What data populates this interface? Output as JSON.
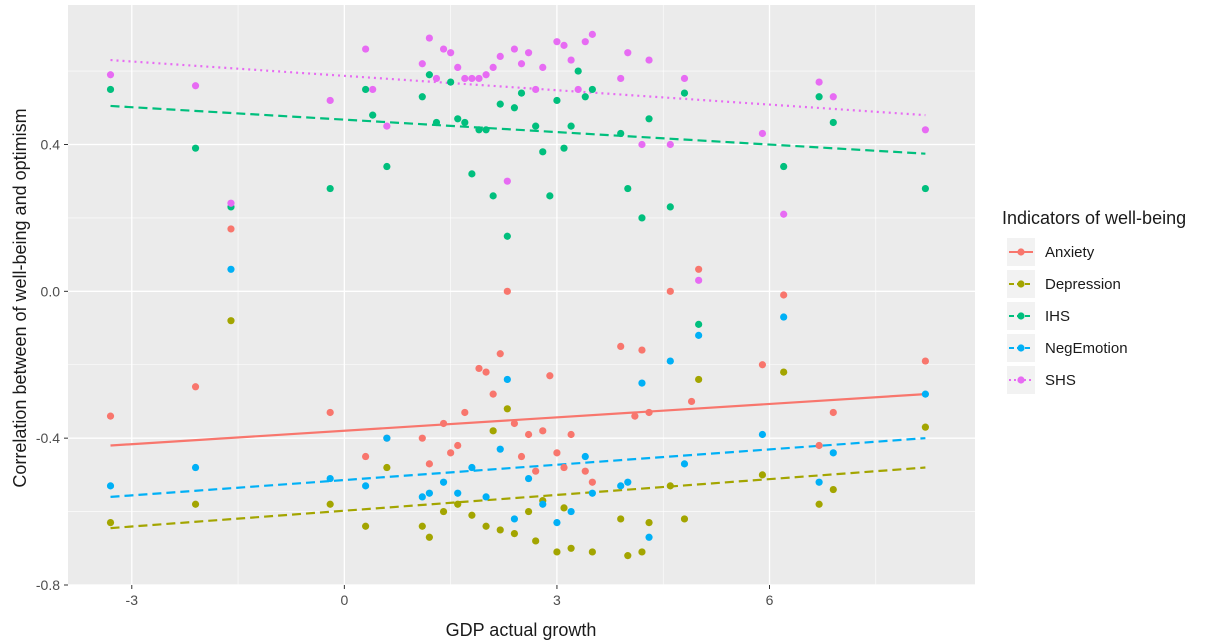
{
  "chart_data": {
    "type": "scatter",
    "xlabel": "GDP actual growth",
    "ylabel": "Correlation between of well-being and optimism",
    "xlim": [
      -3.9,
      8.9
    ],
    "ylim": [
      -0.8,
      0.78
    ],
    "x_ticks": [
      -3,
      0,
      3,
      6
    ],
    "x_tick_labels": [
      "-3",
      "0",
      "3",
      "6"
    ],
    "y_ticks": [
      -0.8,
      -0.4,
      0.0,
      0.4
    ],
    "y_tick_labels": [
      "-0.8",
      "-0.4",
      "0.0",
      "0.4"
    ],
    "grid": true,
    "panel_background": "#ebebeb",
    "legend": {
      "title": "Indicators of well-being",
      "placement": "right",
      "entries": [
        "Anxiety",
        "Depression",
        "IHS",
        "NegEmotion",
        "SHS"
      ]
    },
    "series": [
      {
        "name": "Anxiety",
        "color": "#f8766d",
        "line_style": "solid",
        "trend": {
          "x": [
            -3.3,
            8.2
          ],
          "y": [
            -0.42,
            -0.28
          ]
        },
        "points": [
          [
            -3.3,
            -0.34
          ],
          [
            -2.1,
            -0.26
          ],
          [
            -1.6,
            0.17
          ],
          [
            -0.2,
            -0.33
          ],
          [
            0.3,
            -0.45
          ],
          [
            0.6,
            -0.4
          ],
          [
            1.1,
            -0.4
          ],
          [
            1.2,
            -0.47
          ],
          [
            1.4,
            -0.36
          ],
          [
            1.5,
            -0.44
          ],
          [
            1.6,
            -0.42
          ],
          [
            1.7,
            -0.33
          ],
          [
            1.9,
            -0.21
          ],
          [
            2.0,
            -0.22
          ],
          [
            2.1,
            -0.28
          ],
          [
            2.2,
            -0.17
          ],
          [
            2.3,
            0.0
          ],
          [
            2.4,
            -0.36
          ],
          [
            2.5,
            -0.45
          ],
          [
            2.6,
            -0.39
          ],
          [
            2.7,
            -0.49
          ],
          [
            2.8,
            -0.38
          ],
          [
            2.9,
            -0.23
          ],
          [
            3.0,
            -0.44
          ],
          [
            3.1,
            -0.48
          ],
          [
            3.2,
            -0.39
          ],
          [
            3.4,
            -0.49
          ],
          [
            3.5,
            -0.52
          ],
          [
            3.9,
            -0.15
          ],
          [
            4.1,
            -0.34
          ],
          [
            4.2,
            -0.16
          ],
          [
            4.3,
            -0.33
          ],
          [
            4.6,
            0.0
          ],
          [
            4.9,
            -0.3
          ],
          [
            5.0,
            0.06
          ],
          [
            5.9,
            -0.2
          ],
          [
            6.2,
            -0.01
          ],
          [
            6.7,
            -0.42
          ],
          [
            6.9,
            -0.33
          ],
          [
            8.2,
            -0.19
          ]
        ]
      },
      {
        "name": "Depression",
        "color": "#a3a500",
        "line_style": "dashed",
        "trend": {
          "x": [
            -3.3,
            8.2
          ],
          "y": [
            -0.645,
            -0.48
          ]
        },
        "points": [
          [
            -3.3,
            -0.63
          ],
          [
            -2.1,
            -0.58
          ],
          [
            -1.6,
            -0.08
          ],
          [
            -0.2,
            -0.58
          ],
          [
            0.3,
            -0.64
          ],
          [
            0.6,
            -0.48
          ],
          [
            1.1,
            -0.64
          ],
          [
            1.2,
            -0.67
          ],
          [
            1.4,
            -0.6
          ],
          [
            1.6,
            -0.58
          ],
          [
            1.8,
            -0.61
          ],
          [
            2.0,
            -0.64
          ],
          [
            2.1,
            -0.38
          ],
          [
            2.2,
            -0.65
          ],
          [
            2.3,
            -0.32
          ],
          [
            2.4,
            -0.66
          ],
          [
            2.6,
            -0.6
          ],
          [
            2.7,
            -0.68
          ],
          [
            2.8,
            -0.57
          ],
          [
            3.0,
            -0.71
          ],
          [
            3.1,
            -0.59
          ],
          [
            3.2,
            -0.7
          ],
          [
            3.5,
            -0.71
          ],
          [
            3.9,
            -0.62
          ],
          [
            4.0,
            -0.72
          ],
          [
            4.2,
            -0.71
          ],
          [
            4.3,
            -0.63
          ],
          [
            4.6,
            -0.53
          ],
          [
            4.8,
            -0.62
          ],
          [
            5.0,
            -0.24
          ],
          [
            5.9,
            -0.5
          ],
          [
            6.2,
            -0.22
          ],
          [
            6.7,
            -0.58
          ],
          [
            6.9,
            -0.54
          ],
          [
            8.2,
            -0.37
          ]
        ]
      },
      {
        "name": "IHS",
        "color": "#00bf7d",
        "line_style": "dashed",
        "trend": {
          "x": [
            -3.3,
            8.2
          ],
          "y": [
            0.505,
            0.375
          ]
        },
        "points": [
          [
            -3.3,
            0.55
          ],
          [
            -2.1,
            0.39
          ],
          [
            -1.6,
            0.23
          ],
          [
            -0.2,
            0.28
          ],
          [
            0.3,
            0.55
          ],
          [
            0.4,
            0.48
          ],
          [
            0.6,
            0.34
          ],
          [
            1.1,
            0.53
          ],
          [
            1.2,
            0.59
          ],
          [
            1.3,
            0.46
          ],
          [
            1.5,
            0.57
          ],
          [
            1.6,
            0.47
          ],
          [
            1.7,
            0.46
          ],
          [
            1.8,
            0.32
          ],
          [
            1.9,
            0.44
          ],
          [
            2.0,
            0.44
          ],
          [
            2.1,
            0.26
          ],
          [
            2.2,
            0.51
          ],
          [
            2.3,
            0.15
          ],
          [
            2.4,
            0.5
          ],
          [
            2.5,
            0.54
          ],
          [
            2.7,
            0.45
          ],
          [
            2.8,
            0.38
          ],
          [
            2.9,
            0.26
          ],
          [
            3.0,
            0.52
          ],
          [
            3.1,
            0.39
          ],
          [
            3.2,
            0.45
          ],
          [
            3.3,
            0.6
          ],
          [
            3.4,
            0.53
          ],
          [
            3.5,
            0.55
          ],
          [
            3.9,
            0.43
          ],
          [
            4.0,
            0.28
          ],
          [
            4.2,
            0.2
          ],
          [
            4.3,
            0.47
          ],
          [
            4.6,
            0.23
          ],
          [
            4.8,
            0.54
          ],
          [
            5.0,
            -0.09
          ],
          [
            6.2,
            0.34
          ],
          [
            6.7,
            0.53
          ],
          [
            6.9,
            0.46
          ],
          [
            8.2,
            0.28
          ]
        ]
      },
      {
        "name": "NegEmotion",
        "color": "#00b0f6",
        "line_style": "dashed",
        "trend": {
          "x": [
            -3.3,
            8.2
          ],
          "y": [
            -0.56,
            -0.4
          ]
        },
        "points": [
          [
            -3.3,
            -0.53
          ],
          [
            -2.1,
            -0.48
          ],
          [
            -1.6,
            0.06
          ],
          [
            -0.2,
            -0.51
          ],
          [
            0.3,
            -0.53
          ],
          [
            0.6,
            -0.4
          ],
          [
            1.1,
            -0.56
          ],
          [
            1.2,
            -0.55
          ],
          [
            1.4,
            -0.52
          ],
          [
            1.6,
            -0.55
          ],
          [
            1.8,
            -0.48
          ],
          [
            2.0,
            -0.56
          ],
          [
            2.2,
            -0.43
          ],
          [
            2.3,
            -0.24
          ],
          [
            2.4,
            -0.62
          ],
          [
            2.6,
            -0.51
          ],
          [
            2.8,
            -0.58
          ],
          [
            3.0,
            -0.63
          ],
          [
            3.2,
            -0.6
          ],
          [
            3.4,
            -0.45
          ],
          [
            3.5,
            -0.55
          ],
          [
            3.9,
            -0.53
          ],
          [
            4.0,
            -0.52
          ],
          [
            4.2,
            -0.25
          ],
          [
            4.3,
            -0.67
          ],
          [
            4.6,
            -0.19
          ],
          [
            4.8,
            -0.47
          ],
          [
            5.0,
            -0.12
          ],
          [
            5.9,
            -0.39
          ],
          [
            6.2,
            -0.07
          ],
          [
            6.7,
            -0.52
          ],
          [
            6.9,
            -0.44
          ],
          [
            8.2,
            -0.28
          ]
        ]
      },
      {
        "name": "SHS",
        "color": "#e76bf3",
        "line_style": "dotted",
        "trend": {
          "x": [
            -3.3,
            8.2
          ],
          "y": [
            0.63,
            0.48
          ]
        },
        "points": [
          [
            -3.3,
            0.59
          ],
          [
            -2.1,
            0.56
          ],
          [
            -1.6,
            0.24
          ],
          [
            -0.2,
            0.52
          ],
          [
            0.3,
            0.66
          ],
          [
            0.4,
            0.55
          ],
          [
            0.6,
            0.45
          ],
          [
            1.1,
            0.62
          ],
          [
            1.2,
            0.69
          ],
          [
            1.3,
            0.58
          ],
          [
            1.4,
            0.66
          ],
          [
            1.5,
            0.65
          ],
          [
            1.6,
            0.61
          ],
          [
            1.7,
            0.58
          ],
          [
            1.8,
            0.58
          ],
          [
            1.9,
            0.58
          ],
          [
            2.0,
            0.59
          ],
          [
            2.1,
            0.61
          ],
          [
            2.2,
            0.64
          ],
          [
            2.3,
            0.3
          ],
          [
            2.4,
            0.66
          ],
          [
            2.5,
            0.62
          ],
          [
            2.6,
            0.65
          ],
          [
            2.7,
            0.55
          ],
          [
            2.8,
            0.61
          ],
          [
            3.0,
            0.68
          ],
          [
            3.1,
            0.67
          ],
          [
            3.2,
            0.63
          ],
          [
            3.3,
            0.55
          ],
          [
            3.4,
            0.68
          ],
          [
            3.5,
            0.7
          ],
          [
            3.9,
            0.58
          ],
          [
            4.0,
            0.65
          ],
          [
            4.2,
            0.4
          ],
          [
            4.3,
            0.63
          ],
          [
            4.6,
            0.4
          ],
          [
            4.8,
            0.58
          ],
          [
            5.0,
            0.03
          ],
          [
            5.9,
            0.43
          ],
          [
            6.2,
            0.21
          ],
          [
            6.7,
            0.57
          ],
          [
            6.9,
            0.53
          ],
          [
            8.2,
            0.44
          ]
        ]
      }
    ]
  }
}
